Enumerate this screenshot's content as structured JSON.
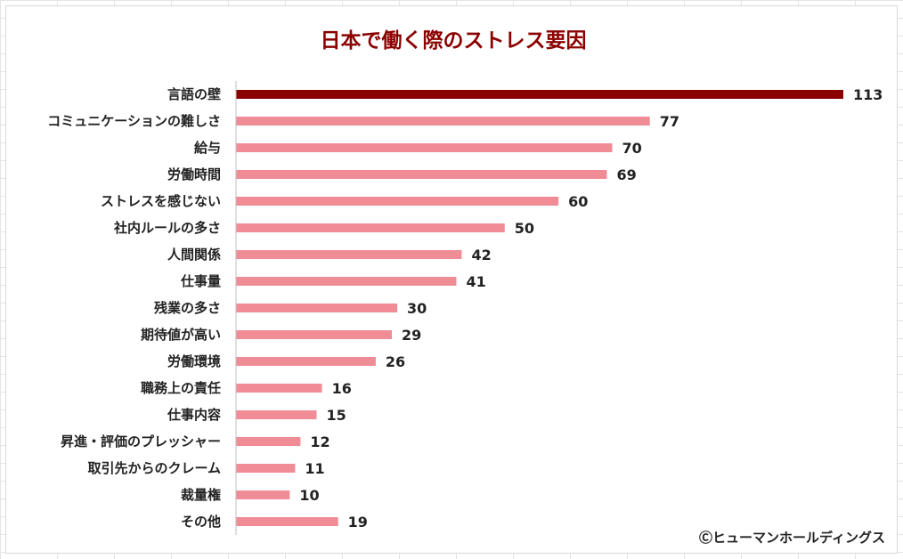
{
  "chart_data": {
    "type": "bar",
    "orientation": "horizontal",
    "title": "日本で働く際のストレス要因",
    "categories": [
      "言語の壁",
      "コミュニケーションの難しさ",
      "給与",
      "労働時間",
      "ストレスを感じない",
      "社内ルールの多さ",
      "人間関係",
      "仕事量",
      "残業の多さ",
      "期待値が高い",
      "労働環境",
      "職務上の責任",
      "仕事内容",
      "昇進・評価のプレッシャー",
      "取引先からのクレーム",
      "裁量権",
      "その他"
    ],
    "values": [
      113,
      77,
      70,
      69,
      60,
      50,
      42,
      41,
      30,
      29,
      26,
      16,
      15,
      12,
      11,
      10,
      19
    ],
    "xlim": [
      0,
      113
    ],
    "xlabel": "",
    "ylabel": "",
    "grid": false,
    "highlight_index": 0,
    "colors": {
      "highlight": "#8b0000",
      "bar": "#f08c96",
      "title": "#8b0000",
      "axis": "#bfbfbf",
      "text": "#222222"
    }
  },
  "credit": "Ⓒヒューマンホールディングス"
}
